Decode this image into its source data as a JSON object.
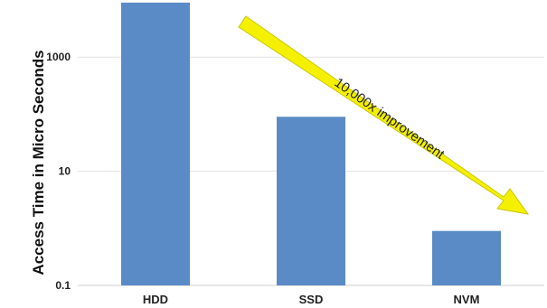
{
  "chart_data": {
    "type": "bar",
    "title": "",
    "xlabel": "",
    "ylabel": "Access Time in Micro Seconds",
    "yscale": "log",
    "ylim": [
      0.1,
      10000
    ],
    "yticks": [
      0.1,
      10,
      1000
    ],
    "ytick_labels": [
      "0.1",
      "10",
      "1000"
    ],
    "categories": [
      "HDD",
      "SSD",
      "NVM"
    ],
    "values": [
      9000,
      90,
      0.9
    ],
    "grid": true,
    "bar_color": "#5a8bc6",
    "annotation": {
      "text": "10,000x improvement",
      "color": "#f4f000"
    }
  }
}
